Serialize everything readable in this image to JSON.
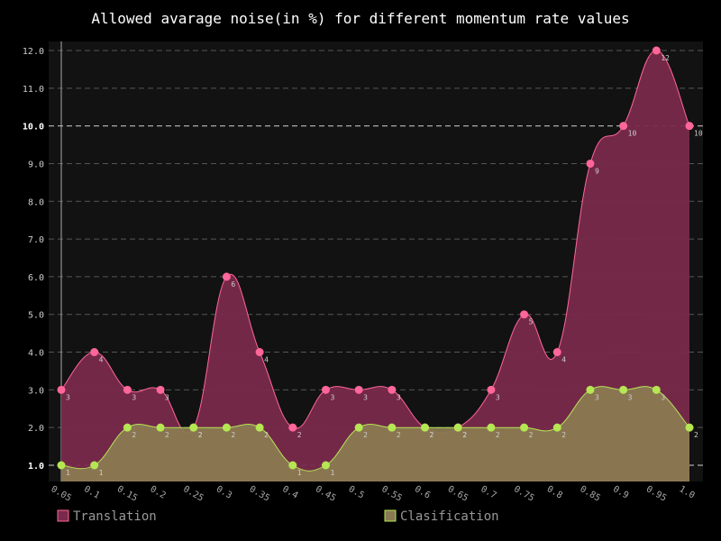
{
  "chart_data": {
    "type": "area",
    "title": "Allowed avarage noise(in %) for different momentum rate values",
    "xlabel": "",
    "ylabel": "",
    "categories": [
      "0.05",
      "0.1",
      "0.15",
      "0.2",
      "0.25",
      "0.3",
      "0.35",
      "0.4",
      "0.45",
      "0.5",
      "0.55",
      "0.6",
      "0.65",
      "0.7",
      "0.75",
      "0.8",
      "0.85",
      "0.9",
      "0.95",
      "1.0"
    ],
    "ylim": [
      0.6,
      12.2
    ],
    "yticks": [
      "1.0",
      "2.0",
      "3.0",
      "4.0",
      "5.0",
      "6.0",
      "7.0",
      "8.0",
      "9.0",
      "10.0",
      "11.0",
      "12.0"
    ],
    "major_yticks": [
      "1.0",
      "10.0"
    ],
    "grid": true,
    "legend_position": "bottom",
    "series": [
      {
        "name": "Translation",
        "values": [
          3,
          4,
          3,
          3,
          2,
          6,
          4,
          2,
          3,
          3,
          3,
          2,
          2,
          3,
          5,
          4,
          9,
          10,
          12,
          10
        ],
        "color": "#ff6699",
        "fill": "#7a2a4c"
      },
      {
        "name": "Clasification",
        "values": [
          1,
          1,
          2,
          2,
          2,
          2,
          2,
          1,
          1,
          2,
          2,
          2,
          2,
          2,
          2,
          2,
          3,
          3,
          3,
          2
        ],
        "color": "#b5e653",
        "fill": "#8a7a52"
      }
    ]
  }
}
